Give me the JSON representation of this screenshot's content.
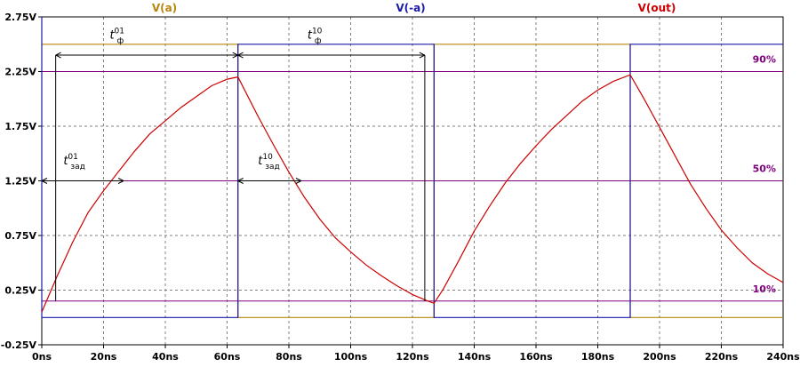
{
  "chart_data": {
    "type": "line",
    "title": "",
    "xlabel": "",
    "ylabel": "",
    "xlim": [
      0,
      240
    ],
    "ylim": [
      -0.25,
      2.75
    ],
    "x_unit": "ns",
    "y_unit": "V",
    "x_ticks": [
      0,
      20,
      40,
      60,
      80,
      100,
      120,
      140,
      160,
      180,
      200,
      220,
      240
    ],
    "y_ticks": [
      -0.25,
      0.25,
      0.75,
      1.25,
      1.75,
      2.25,
      2.75
    ],
    "x_tick_labels": [
      "0ns",
      "20ns",
      "40ns",
      "60ns",
      "80ns",
      "100ns",
      "120ns",
      "140ns",
      "160ns",
      "180ns",
      "200ns",
      "220ns",
      "240ns"
    ],
    "y_tick_labels": [
      "-0.25V",
      "0.25V",
      "0.75V",
      "1.25V",
      "1.75V",
      "2.25V",
      "2.75V"
    ],
    "grid": true,
    "legend_position": "top",
    "series": [
      {
        "name": "V(a)",
        "color": "#b8860b",
        "x": [
          0,
          63.5,
          63.5,
          127,
          127,
          190.5,
          190.5,
          240
        ],
        "y": [
          2.5,
          2.5,
          0.0,
          0.0,
          2.5,
          2.5,
          0.0,
          0.0
        ]
      },
      {
        "name": "V(-a)",
        "color": "#1a1aa6",
        "x": [
          0,
          0,
          63.5,
          63.5,
          127,
          127,
          190.5,
          190.5,
          240
        ],
        "y": [
          2.75,
          0.0,
          0.0,
          2.5,
          2.5,
          0.0,
          0.0,
          2.5,
          2.5
        ]
      },
      {
        "name": "V(out)",
        "color": "#cc0000",
        "x": [
          0,
          5,
          10,
          15,
          20,
          25,
          30,
          35,
          40,
          45,
          50,
          55,
          60,
          63.5,
          70,
          75,
          80,
          85,
          90,
          95,
          100,
          105,
          110,
          115,
          120,
          125,
          127,
          130,
          135,
          140,
          145,
          150,
          155,
          160,
          165,
          170,
          175,
          180,
          185,
          190.5,
          195,
          200,
          205,
          210,
          215,
          220,
          225,
          230,
          235,
          240
        ],
        "y": [
          0.05,
          0.38,
          0.69,
          0.96,
          1.16,
          1.34,
          1.52,
          1.68,
          1.8,
          1.92,
          2.02,
          2.12,
          2.18,
          2.2,
          1.84,
          1.58,
          1.33,
          1.1,
          0.9,
          0.73,
          0.6,
          0.48,
          0.38,
          0.29,
          0.21,
          0.15,
          0.13,
          0.26,
          0.52,
          0.79,
          1.02,
          1.23,
          1.41,
          1.57,
          1.72,
          1.85,
          1.98,
          2.08,
          2.16,
          2.22,
          2.0,
          1.74,
          1.48,
          1.22,
          1.0,
          0.8,
          0.64,
          0.5,
          0.4,
          0.32
        ]
      }
    ],
    "reference_lines": [
      {
        "label": "90%",
        "y": 2.25,
        "color": "#800080"
      },
      {
        "label": "50%",
        "y": 1.25,
        "color": "#800080"
      },
      {
        "label": "10%",
        "y": 0.15,
        "color": "#800080"
      }
    ],
    "annotations": [
      {
        "base": "t",
        "sub": "ф",
        "sup": "01",
        "x_from": 4.5,
        "x_to": 63.5,
        "y": 2.4,
        "label_x": 22.0,
        "label_y": 2.55
      },
      {
        "base": "t",
        "sub": "ф",
        "sup": "10",
        "x_from": 63.5,
        "x_to": 124.0,
        "y": 2.4,
        "label_x": 86.0,
        "label_y": 2.55
      },
      {
        "base": "t",
        "sub": "зад",
        "sup": "01",
        "x_from": 0,
        "x_to": 26.5,
        "y": 1.25,
        "label_x": 7.0,
        "label_y": 1.4
      },
      {
        "base": "t",
        "sub": "зад",
        "sup": "10",
        "x_from": 63.5,
        "x_to": 84.0,
        "y": 1.25,
        "label_x": 70.0,
        "label_y": 1.4
      }
    ],
    "marker_lines": [
      {
        "x": 4.5,
        "y_from": 0.15,
        "y_to": 2.4
      },
      {
        "x": 124.0,
        "y_from": 0.15,
        "y_to": 2.4
      }
    ]
  }
}
